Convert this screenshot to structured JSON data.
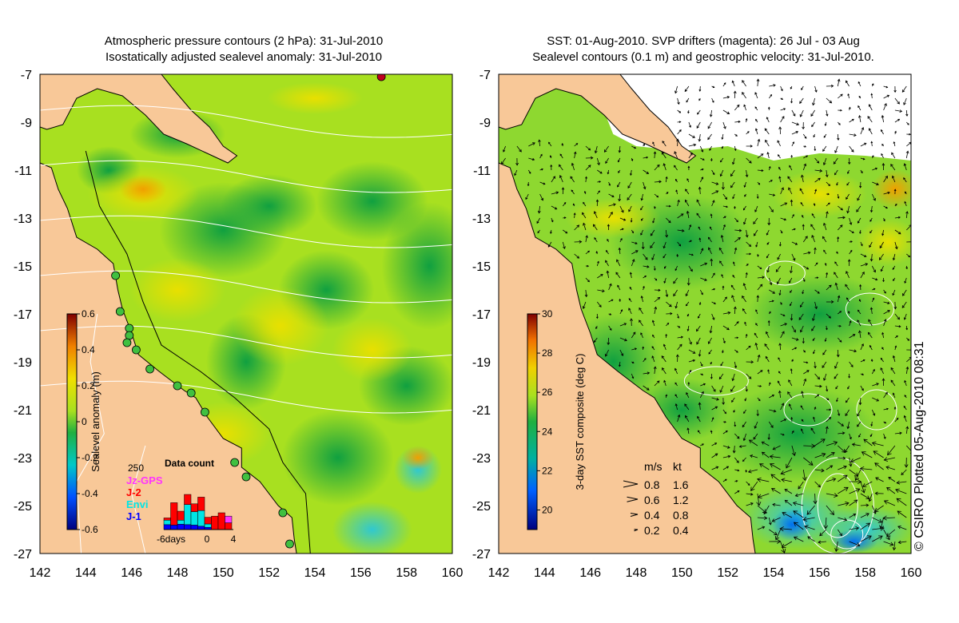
{
  "left_panel": {
    "title_line1": "Atmospheric pressure contours (2 hPa): 31-Jul-2010",
    "title_line2": "Isostatically adjusted sealevel anomaly: 31-Jul-2010",
    "colorbar": {
      "label": "Sealevel anomaly (m)",
      "ticks": [
        "0.6",
        "0.4",
        "0.2",
        "0",
        "-0.2",
        "-0.4",
        "-0.6"
      ],
      "range": [
        -0.6,
        0.6
      ]
    },
    "data_count_inset": {
      "title": "Data count",
      "y_max_label": "250",
      "x_labels": [
        "-6days",
        "0",
        "4"
      ],
      "legend": [
        {
          "label": "Jz-GPS",
          "color": "#ff33ff"
        },
        {
          "label": "J-2",
          "color": "#ff0000"
        },
        {
          "label": "Envi",
          "color": "#00e5e5"
        },
        {
          "label": "J-1",
          "color": "#0000ff"
        }
      ],
      "bars": [
        {
          "day": -6,
          "j1": 22,
          "envi": 20,
          "j2": 10,
          "jz": 0
        },
        {
          "day": -5,
          "j1": 20,
          "envi": 0,
          "j2": 100,
          "jz": 0
        },
        {
          "day": -4,
          "j1": 24,
          "envi": 18,
          "j2": 40,
          "jz": 0
        },
        {
          "day": -3,
          "j1": 22,
          "envi": 90,
          "j2": 45,
          "jz": 0
        },
        {
          "day": -2,
          "j1": 20,
          "envi": 60,
          "j2": 35,
          "jz": 0
        },
        {
          "day": -1,
          "j1": 15,
          "envi": 70,
          "j2": 60,
          "jz": 0
        },
        {
          "day": 0,
          "j1": 10,
          "envi": 15,
          "j2": 30,
          "jz": 0
        },
        {
          "day": 1,
          "j1": 0,
          "envi": 0,
          "j2": 60,
          "jz": 0
        },
        {
          "day": 2,
          "j1": 0,
          "envi": 0,
          "j2": 75,
          "jz": 0
        },
        {
          "day": 3,
          "j1": 0,
          "envi": 0,
          "j2": 30,
          "jz": 30
        }
      ]
    }
  },
  "right_panel": {
    "title_line1": "SST: 01-Aug-2010. SVP drifters (magenta): 26 Jul - 03 Aug",
    "title_line2": "Sealevel contours (0.1 m) and geostrophic velocity: 31-Jul-2010.",
    "colorbar": {
      "label": "3-day SST composite (deg C)",
      "ticks": [
        "30",
        "28",
        "26",
        "24",
        "22",
        "20"
      ],
      "range": [
        19,
        30
      ]
    },
    "velocity_legend": {
      "unit_ms": "m/s",
      "unit_kt": "kt",
      "rows": [
        {
          "ms": "0.8",
          "kt": "1.6"
        },
        {
          "ms": "0.6",
          "kt": "1.2"
        },
        {
          "ms": "0.4",
          "kt": "0.8"
        },
        {
          "ms": "0.2",
          "kt": "0.4"
        }
      ]
    }
  },
  "axes": {
    "lon_ticks": [
      "142",
      "144",
      "146",
      "148",
      "150",
      "152",
      "154",
      "156",
      "158",
      "160"
    ],
    "lat_ticks": [
      "-7",
      "-9",
      "-11",
      "-13",
      "-15",
      "-17",
      "-19",
      "-21",
      "-23",
      "-25",
      "-27"
    ],
    "lon_range": [
      142,
      160
    ],
    "lat_range": [
      -27,
      -7
    ]
  },
  "tide_gauges": [
    {
      "lon": 145.3,
      "lat": -15.4
    },
    {
      "lon": 145.5,
      "lat": -16.9
    },
    {
      "lon": 145.9,
      "lat": -17.6
    },
    {
      "lon": 145.9,
      "lat": -17.9
    },
    {
      "lon": 145.8,
      "lat": -18.2
    },
    {
      "lon": 146.2,
      "lat": -18.5
    },
    {
      "lon": 146.8,
      "lat": -19.3
    },
    {
      "lon": 148.0,
      "lat": -20.0
    },
    {
      "lon": 148.6,
      "lat": -20.3
    },
    {
      "lon": 149.2,
      "lat": -21.1
    },
    {
      "lon": 150.5,
      "lat": -23.2
    },
    {
      "lon": 151.0,
      "lat": -23.8
    },
    {
      "lon": 152.6,
      "lat": -25.3
    },
    {
      "lon": 152.9,
      "lat": -26.6
    },
    {
      "lon": 156.9,
      "lat": -7.1
    }
  ],
  "footer": {
    "copyright": "© CSIRO Plotted 05-Aug-2010 08:31"
  },
  "colors": {
    "land": "#f8c898",
    "ocean_base": "#a8e020",
    "no_data": "#ffffff"
  }
}
